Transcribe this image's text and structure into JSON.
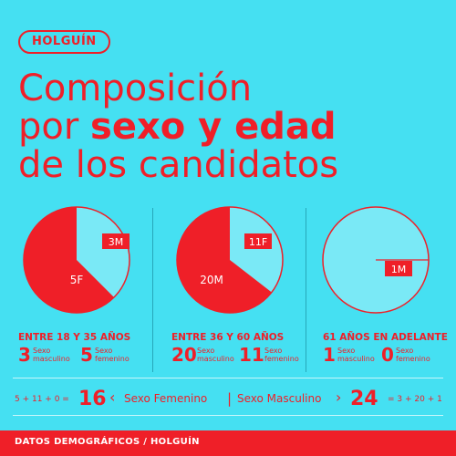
{
  "region": "HOLGUÍN",
  "title": {
    "line1": "Composición",
    "line2_prefix": "por ",
    "line2_bold": "sexo y edad",
    "line3": "de los candidatos"
  },
  "colors": {
    "background": "#45e0f2",
    "accent": "#ef1f28",
    "white": "#ffffff"
  },
  "chart_data": [
    {
      "type": "pie",
      "title": "ENTRE 18 Y 35 AÑOS",
      "slices": [
        {
          "label": "3M",
          "sex": "Sexo masculino",
          "value": 3
        },
        {
          "label": "5F",
          "sex": "Sexo femenino",
          "value": 5
        }
      ]
    },
    {
      "type": "pie",
      "title": "ENTRE 36 Y 60 AÑOS",
      "slices": [
        {
          "label": "20M",
          "sex": "Sexo masculino",
          "value": 20
        },
        {
          "label": "11F",
          "sex": "Sexo femenino",
          "value": 11
        }
      ]
    },
    {
      "type": "pie",
      "title": "61 AÑOS EN ADELANTE",
      "slices": [
        {
          "label": "1M",
          "sex": "Sexo masculino",
          "value": 1
        },
        {
          "label": "0F",
          "sex": "Sexo femenino",
          "value": 0
        }
      ]
    }
  ],
  "groups": [
    {
      "title": "ENTRE 18 Y 35 AÑOS",
      "male_count": "3",
      "female_count": "5",
      "male_label": "Sexo\nmasculino",
      "female_label": "Sexo\nfemenino"
    },
    {
      "title": "ENTRE 36 Y 60 AÑOS",
      "male_count": "20",
      "female_count": "11",
      "male_label": "Sexo\nmasculino",
      "female_label": "Sexo\nfemenino"
    },
    {
      "title": "61 AÑOS EN ADELANTE",
      "male_count": "1",
      "female_count": "0",
      "male_label": "Sexo\nmasculino",
      "female_label": "Sexo\nfemenino"
    }
  ],
  "pie_labels": [
    {
      "outer": "3M",
      "inner": "5F"
    },
    {
      "outer": "11F",
      "inner": "20M"
    },
    {
      "outer": "1M",
      "inner": ""
    }
  ],
  "totals": {
    "female_formula": "5 + 11 + 0 =",
    "female_total": "16",
    "female_arrow": "‹",
    "female_label": "Sexo Femenino",
    "male_label": "Sexo Masculino",
    "male_arrow": "›",
    "male_total": "24",
    "male_formula": "= 3 + 20 + 1"
  },
  "footer": "DATOS DEMOGRÁFICOS / HOLGUÍN"
}
